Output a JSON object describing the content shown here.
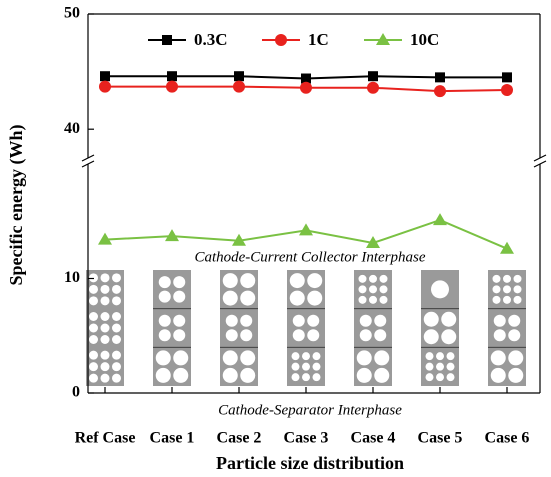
{
  "chart_data": {
    "type": "line",
    "x_label": "Particle size distribution",
    "y_label": "Specific energy (Wh)",
    "categories": [
      "Ref Case",
      "Case 1",
      "Case 2",
      "Case 3",
      "Case 4",
      "Case 5",
      "Case 6"
    ],
    "series": [
      {
        "name": "0.3C",
        "color": "#000000",
        "marker": "square",
        "values": [
          44.6,
          44.6,
          44.6,
          44.4,
          44.6,
          44.5,
          44.5
        ]
      },
      {
        "name": "1C",
        "color": "#e8221e",
        "marker": "circle",
        "values": [
          43.7,
          43.7,
          43.7,
          43.6,
          43.6,
          43.3,
          43.4
        ]
      },
      {
        "name": "10C",
        "color": "#7ac143",
        "marker": "triangle",
        "values": [
          13.4,
          13.7,
          13.3,
          14.2,
          13.1,
          15.1,
          12.6
        ]
      }
    ],
    "ylim": [
      0,
      50
    ],
    "ybreak": [
      20,
      37.5
    ],
    "yticks": [
      0,
      10,
      40,
      50
    ],
    "legend": "top",
    "annotations": [
      "Cathode-Current Collector Interphase",
      "Cathode-Separator Interphase"
    ]
  }
}
